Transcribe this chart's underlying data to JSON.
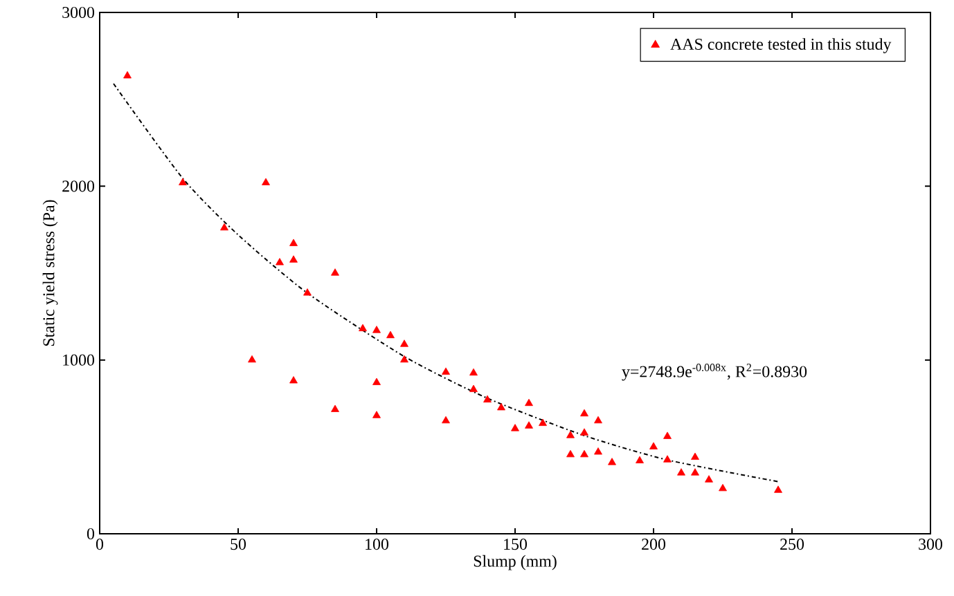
{
  "chart_data": {
    "type": "scatter",
    "xlabel": "Slump (mm)",
    "ylabel": "Static yield stress (Pa)",
    "xlim": [
      0,
      300
    ],
    "ylim": [
      0,
      3000
    ],
    "xticks": [
      0,
      50,
      100,
      150,
      200,
      250,
      300
    ],
    "yticks": [
      0,
      1000,
      2000,
      3000
    ],
    "grid": false,
    "legend": "top right",
    "annotations": [
      "y=2748.9e$^{-0.008x}$, R$^{2}$=0.8930"
    ],
    "series": [
      {
        "name": "AAS concrete tested in this study",
        "marker": "triangle",
        "color": "#ff0000",
        "x": [
          10,
          30,
          45,
          55,
          60,
          65,
          70,
          70,
          70,
          75,
          85,
          85,
          95,
          100,
          100,
          100,
          105,
          110,
          110,
          125,
          125,
          135,
          135,
          140,
          145,
          150,
          155,
          155,
          160,
          170,
          170,
          175,
          175,
          175,
          180,
          180,
          185,
          195,
          200,
          205,
          205,
          210,
          215,
          215,
          220,
          225,
          245
        ],
        "values": [
          2635,
          2020,
          1760,
          1000,
          2020,
          1560,
          1670,
          1575,
          880,
          1385,
          1500,
          715,
          1180,
          1170,
          870,
          680,
          1140,
          1090,
          1000,
          930,
          650,
          925,
          830,
          770,
          725,
          605,
          750,
          620,
          635,
          565,
          455,
          690,
          580,
          455,
          650,
          470,
          410,
          420,
          500,
          560,
          425,
          350,
          440,
          350,
          310,
          260,
          250
        ]
      },
      {
        "type": "line",
        "marker": "none",
        "line_style": "dashdot",
        "color": "#000000",
        "x": [
          5,
          30,
          50,
          75,
          110,
          140,
          175,
          205,
          245
        ],
        "values": [
          2590,
          2045,
          1720,
          1385,
          1020,
          780,
          565,
          425,
          300
        ]
      }
    ]
  }
}
